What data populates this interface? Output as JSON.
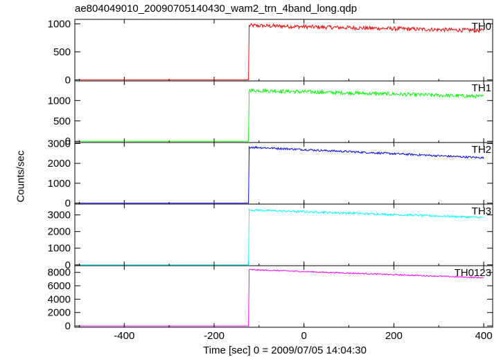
{
  "chart_data": {
    "type": "line",
    "title": "ae804049010_20090705140430_wam2_trn_4band_long.qdp",
    "xlabel": "Time [sec] 0 = 2009/07/05 14:04:30",
    "ylabel": "Counts/sec",
    "xlim": [
      -510,
      420
    ],
    "xticks": [
      -400,
      -200,
      0,
      200,
      400
    ],
    "trigger_time": -122,
    "panels": [
      {
        "name": "TH0",
        "color": "#ff0000",
        "ylim": [
          -20,
          1080
        ],
        "yticks": [
          0,
          500,
          1000
        ],
        "pre_level": 0,
        "post_start": 970,
        "post_end": 880,
        "noise": 35
      },
      {
        "name": "TH1",
        "color": "#00ff00",
        "ylim": [
          -30,
          1480
        ],
        "yticks": [
          0,
          500,
          1000
        ],
        "pre_level": 0,
        "post_start": 1250,
        "post_end": 1100,
        "noise": 45
      },
      {
        "name": "TH2",
        "color": "#0000ff",
        "ylim": [
          -50,
          3050
        ],
        "yticks": [
          0,
          1000,
          2000,
          3000
        ],
        "pre_level": 0,
        "post_start": 2820,
        "post_end": 2280,
        "noise": 50
      },
      {
        "name": "TH3",
        "color": "#00ffff",
        "ylim": [
          -50,
          3650
        ],
        "yticks": [
          0,
          1000,
          2000,
          3000
        ],
        "pre_level": 0,
        "post_start": 3300,
        "post_end": 2850,
        "noise": 60
      },
      {
        "name": "TH0123",
        "color": "#ff00ff",
        "ylim": [
          -200,
          9000
        ],
        "yticks": [
          0,
          2000,
          4000,
          6000,
          8000
        ],
        "pre_level": 0,
        "post_start": 8400,
        "post_end": 7200,
        "noise": 90
      }
    ]
  }
}
